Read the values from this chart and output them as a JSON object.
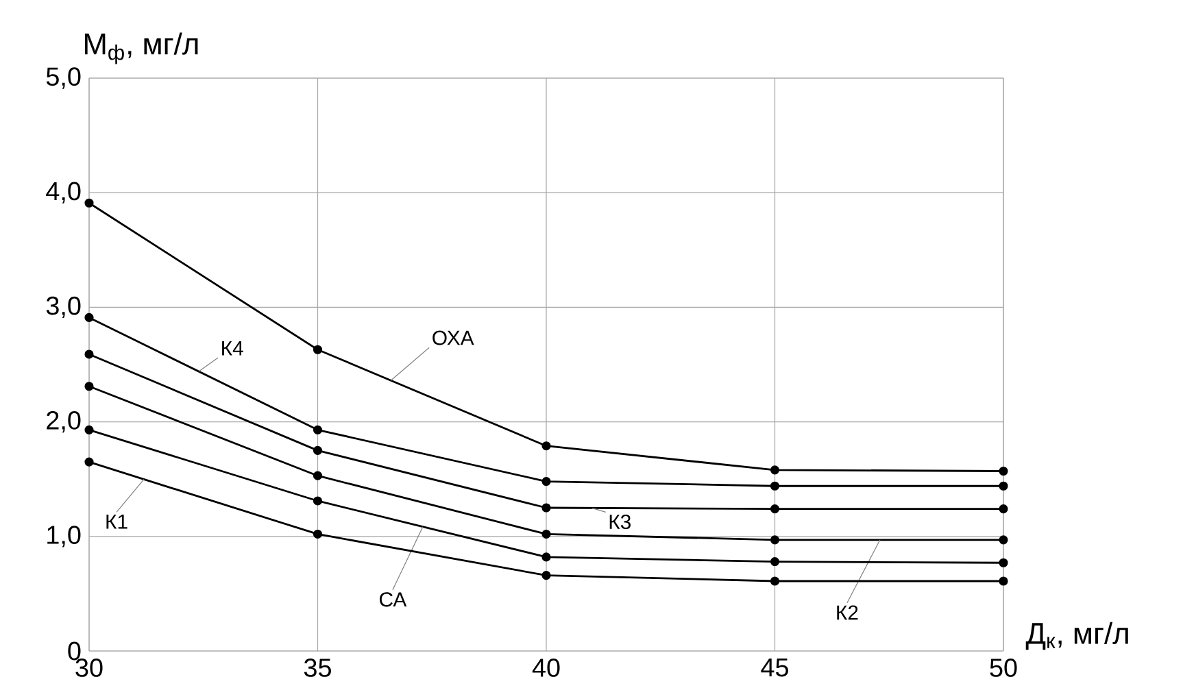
{
  "chart_data": {
    "type": "line",
    "xlabel": "Д$_{к}$, мг/л",
    "ylabel": "М$_{ф}$, мг/л",
    "x": [
      30,
      35,
      40,
      45,
      50
    ],
    "series": [
      {
        "name": "ОХА",
        "color": "#000000",
        "values": [
          3.91,
          2.63,
          1.79,
          1.58,
          1.57
        ]
      },
      {
        "name": "К4",
        "color": "#000000",
        "values": [
          2.91,
          1.93,
          1.48,
          1.44,
          1.44
        ]
      },
      {
        "name": "К3",
        "color": "#000000",
        "values": [
          2.59,
          1.75,
          1.25,
          1.24,
          1.24
        ]
      },
      {
        "name": "К2",
        "color": "#000000",
        "values": [
          2.31,
          1.53,
          1.02,
          0.97,
          0.97
        ]
      },
      {
        "name": "СА",
        "color": "#000000",
        "values": [
          1.93,
          1.31,
          0.82,
          0.78,
          0.77
        ]
      },
      {
        "name": "К1",
        "color": "#000000",
        "values": [
          1.65,
          1.02,
          0.66,
          0.61,
          0.61
        ]
      }
    ],
    "xlim": [
      30,
      50
    ],
    "ylim": [
      0,
      5
    ],
    "xticks": [
      30,
      35,
      40,
      45,
      50
    ],
    "yticks": [
      0,
      {
        "value": 1,
        "label": "1,0"
      },
      {
        "value": 2,
        "label": "2,0"
      },
      {
        "value": 3,
        "label": "3,0"
      },
      {
        "value": 4,
        "label": "4,0"
      },
      {
        "value": 5,
        "label": "5,0"
      }
    ],
    "grid": true,
    "marker": "circle",
    "line_style": "solid"
  }
}
